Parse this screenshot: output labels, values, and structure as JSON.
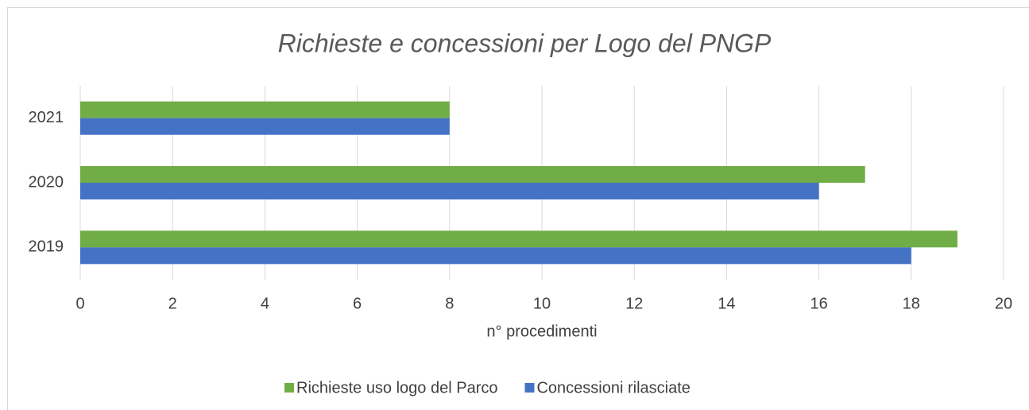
{
  "chart_data": {
    "type": "hbar",
    "title": "Richieste e concessioni per Logo del PNGP",
    "x_label": "n° procedimenti",
    "categories": [
      "2019",
      "2020",
      "2021"
    ],
    "series": [
      {
        "name": "Richieste uso logo del Parco",
        "color": "#70ad47",
        "values": [
          19,
          17,
          8
        ]
      },
      {
        "name": "Concessioni rilasciate",
        "color": "#4472c4",
        "values": [
          18,
          16,
          8
        ]
      }
    ],
    "xlim": [
      0,
      20
    ],
    "xticks": [
      0,
      2,
      4,
      6,
      8,
      10,
      12,
      14,
      16,
      18,
      20
    ],
    "grid": true,
    "legend": "bottom"
  }
}
